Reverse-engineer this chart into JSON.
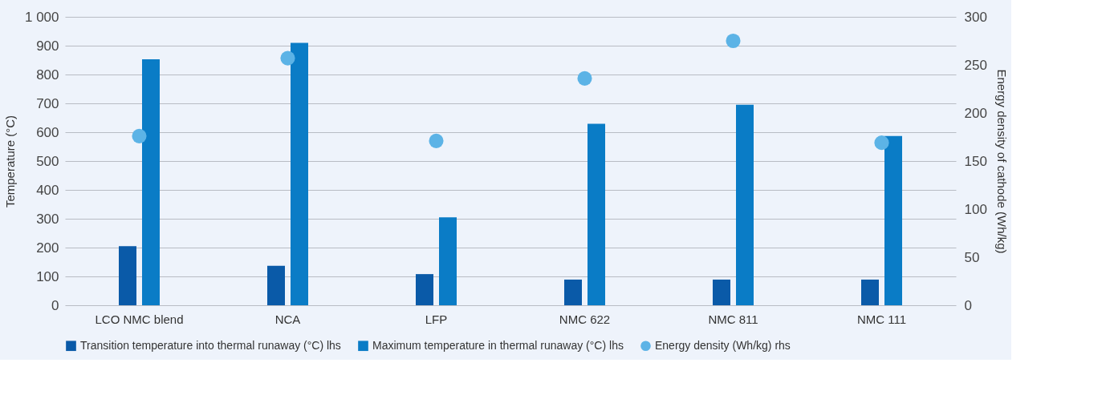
{
  "chart_data": {
    "type": "bar",
    "ylabel": "Temperature (°C)",
    "y2label": "Energy density of cathode (Wh/kg)",
    "categories": [
      "LCO NMC blend",
      "NCA",
      "LFP",
      "NMC 622",
      "NMC 811",
      "NMC 111"
    ],
    "series": [
      {
        "name": "Transition temperature into thermal runaway (°C) lhs",
        "color": "#0a5aa8",
        "values": [
          205,
          137,
          108,
          89,
          89,
          89
        ]
      },
      {
        "name": "Maximum temperature in thermal runaway (°C) lhs",
        "color": "#0a7cc6",
        "values": [
          853,
          910,
          305,
          629,
          695,
          587
        ]
      },
      {
        "name": "Energy density (Wh/kg) rhs",
        "type": "scatter",
        "axis": "y2",
        "color": "#5cb3e6",
        "values": [
          176,
          257,
          171,
          236,
          275,
          169
        ]
      }
    ],
    "ylim": [
      0,
      1000
    ],
    "yticks": [
      0,
      100,
      200,
      300,
      400,
      500,
      600,
      700,
      800,
      900,
      {
        "value": 1000,
        "label": "1 000"
      }
    ],
    "y2lim": [
      0,
      300
    ],
    "y2ticks": [
      0,
      50,
      100,
      150,
      200,
      250,
      300
    ],
    "grid": "y",
    "legend": "bottom",
    "marker": "circle"
  }
}
